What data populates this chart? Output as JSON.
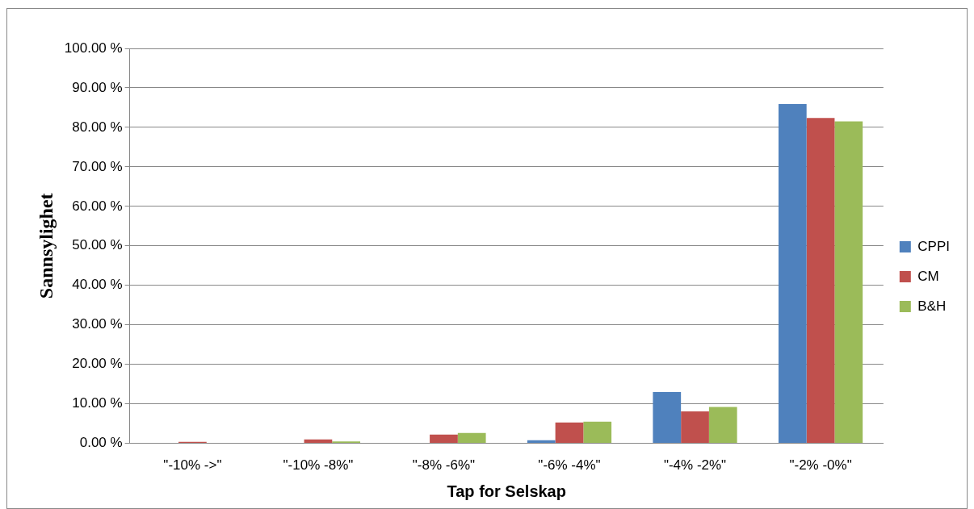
{
  "chart_data": {
    "type": "bar",
    "xlabel": "Tap for Selskap",
    "ylabel": "Sannsylighet",
    "categories": [
      "\"-10% ->\"",
      "\"-10% -8%\"",
      "\"-8% -6%\"",
      "\"-6% -4%\"",
      "\"-4% -2%\"",
      "\"-2% -0%\""
    ],
    "series": [
      {
        "name": "CPPI",
        "color": "#4f81bd",
        "values": [
          0,
          0,
          0,
          0.8,
          13.0,
          85.9
        ]
      },
      {
        "name": "CM",
        "color": "#c0504d",
        "values": [
          0.4,
          1.0,
          2.2,
          5.3,
          8.1,
          82.4
        ]
      },
      {
        "name": "B&H",
        "color": "#9bbb59",
        "values": [
          0.1,
          0.5,
          2.6,
          5.5,
          9.2,
          81.5
        ]
      }
    ],
    "ylim": [
      0,
      100
    ],
    "yticks": [
      {
        "value": 0,
        "label": "0.00 %"
      },
      {
        "value": 10,
        "label": "10.00 %"
      },
      {
        "value": 20,
        "label": "20.00 %"
      },
      {
        "value": 30,
        "label": "30.00 %"
      },
      {
        "value": 40,
        "label": "40.00 %"
      },
      {
        "value": 50,
        "label": "50.00 %"
      },
      {
        "value": 60,
        "label": "60.00 %"
      },
      {
        "value": 70,
        "label": "70.00 %"
      },
      {
        "value": 80,
        "label": "80.00 %"
      },
      {
        "value": 90,
        "label": "90.00 %"
      },
      {
        "value": 100,
        "label": "100.00 %"
      }
    ],
    "grid": "y",
    "legend": "right"
  }
}
